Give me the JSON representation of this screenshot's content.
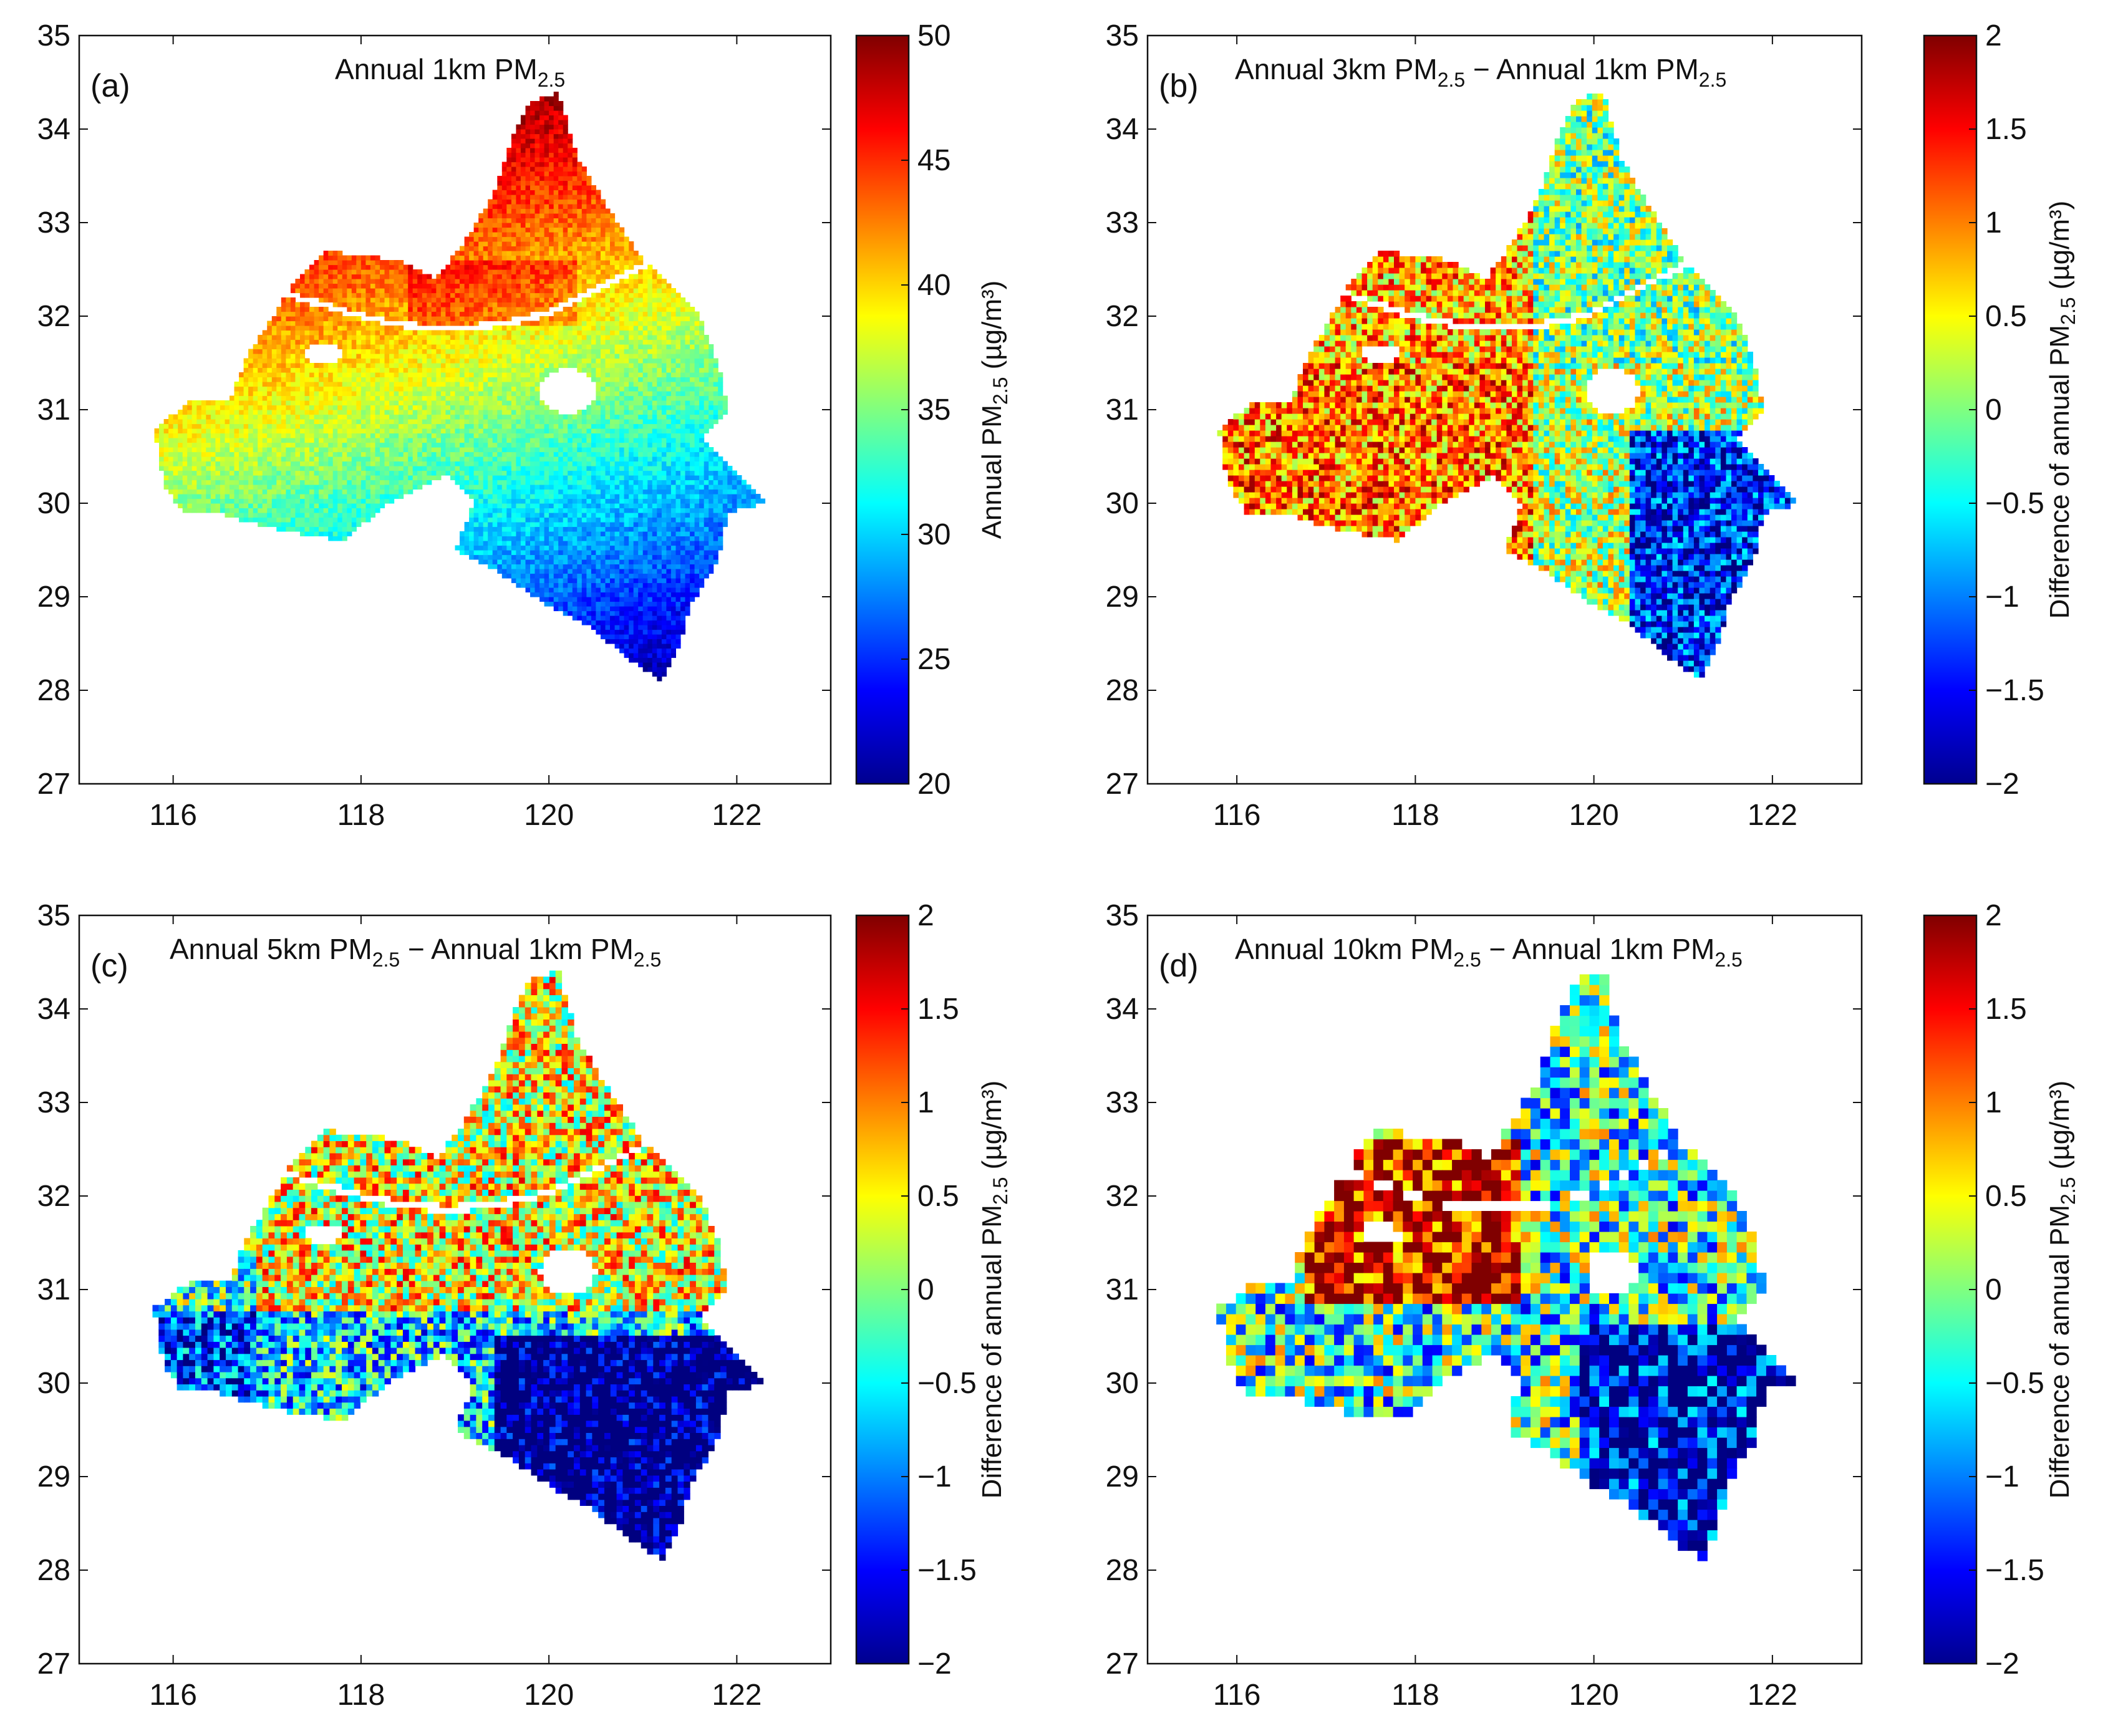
{
  "figure_label": "Four-panel map figure of annual PM2.5",
  "colors": {
    "axis": "#111111",
    "background": "#ffffff"
  },
  "chart_data": [
    {
      "type": "heatmap",
      "panel": "(a)",
      "title_main": "Annual 1km PM",
      "title_sub": "2.5",
      "title_tail": "",
      "x_ticks": [
        "116",
        "118",
        "120",
        "122"
      ],
      "y_ticks": [
        "27",
        "28",
        "29",
        "30",
        "31",
        "32",
        "33",
        "34",
        "35"
      ],
      "xlim": [
        115,
        123
      ],
      "ylim": [
        27,
        35
      ],
      "resolution_km": 1,
      "colorbar": {
        "range": [
          20,
          50
        ],
        "ticks": [
          "20",
          "25",
          "30",
          "35",
          "40",
          "45",
          "50"
        ],
        "label_prefix": "Annual PM",
        "label_sub": "2.5",
        "label_suffix": " (µg/m³)"
      },
      "pattern": "absolute",
      "description_of_values": {
        "north_west": 43,
        "south_east": 29,
        "river_band": 46
      }
    },
    {
      "type": "heatmap",
      "panel": "(b)",
      "title_main": "Annual 3km PM",
      "title_sub": "2.5",
      "title_tail": " − Annual 1km PM",
      "title_sub2": "2.5",
      "x_ticks": [
        "116",
        "118",
        "120",
        "122"
      ],
      "y_ticks": [
        "27",
        "28",
        "29",
        "30",
        "31",
        "32",
        "33",
        "34",
        "35"
      ],
      "xlim": [
        115,
        123
      ],
      "ylim": [
        27,
        35
      ],
      "resolution_km": 3,
      "colorbar": {
        "range": [
          -2,
          2
        ],
        "ticks": [
          "−2",
          "−1.5",
          "−1",
          "−0.5",
          "0",
          "0.5",
          "1",
          "1.5",
          "2"
        ],
        "label_prefix": "Difference of annual PM",
        "label_sub": "2.5",
        "label_suffix": " (µg/m³)"
      },
      "pattern": "diff",
      "description_of_values": {
        "west": 1.2,
        "south_east": -1.6,
        "noise": 0.9
      }
    },
    {
      "type": "heatmap",
      "panel": "(c)",
      "title_main": "Annual 5km PM",
      "title_sub": "2.5",
      "title_tail": " − Annual 1km PM",
      "title_sub2": "2.5",
      "x_ticks": [
        "116",
        "118",
        "120",
        "122"
      ],
      "y_ticks": [
        "27",
        "28",
        "29",
        "30",
        "31",
        "32",
        "33",
        "34",
        "35"
      ],
      "xlim": [
        115,
        123
      ],
      "ylim": [
        27,
        35
      ],
      "resolution_km": 5,
      "colorbar": {
        "range": [
          -2,
          2
        ],
        "ticks": [
          "−2",
          "−1.5",
          "−1",
          "−0.5",
          "0",
          "0.5",
          "1",
          "1.5",
          "2"
        ],
        "label_prefix": "Difference of annual PM",
        "label_sub": "2.5",
        "label_suffix": " (µg/m³)"
      },
      "pattern": "diff",
      "description_of_values": {
        "north": 0.8,
        "south_east": -2.0,
        "noise": 1.1
      }
    },
    {
      "type": "heatmap",
      "panel": "(d)",
      "title_main": "Annual 10km PM",
      "title_sub": "2.5",
      "title_tail": " − Annual 1km PM",
      "title_sub2": "2.5",
      "x_ticks": [
        "116",
        "118",
        "120",
        "122"
      ],
      "y_ticks": [
        "27",
        "28",
        "29",
        "30",
        "31",
        "32",
        "33",
        "34",
        "35"
      ],
      "xlim": [
        115,
        123
      ],
      "ylim": [
        27,
        35
      ],
      "resolution_km": 10,
      "colorbar": {
        "range": [
          -2,
          2
        ],
        "ticks": [
          "−2",
          "−1.5",
          "−1",
          "−0.5",
          "0",
          "0.5",
          "1",
          "1.5",
          "2"
        ],
        "label_prefix": "Difference of annual PM",
        "label_sub": "2.5",
        "label_suffix": " (µg/m³)"
      },
      "pattern": "diff",
      "description_of_values": {
        "west_central": 1.8,
        "south_east": -1.9,
        "noise": 1.3
      }
    }
  ]
}
